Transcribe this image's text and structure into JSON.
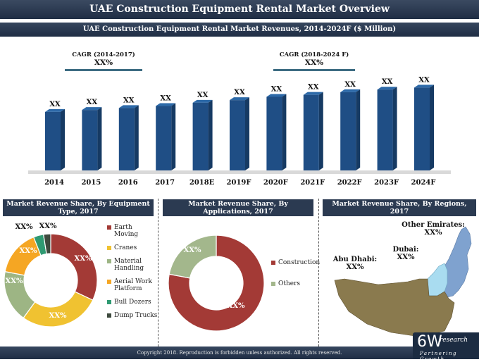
{
  "header": {
    "title": "UAE Construction Equipment Rental Market Overview",
    "subtitle": "UAE Construction Equipment Rental Market Revenues, 2014-2024F ($ Million)"
  },
  "cagr": [
    {
      "label": "CAGR (2014-2017)",
      "value": "XX%"
    },
    {
      "label": "CAGR (2018-2024 F)",
      "value": "XX%"
    }
  ],
  "chart_data": [
    {
      "type": "bar",
      "categories": [
        "2014",
        "2015",
        "2016",
        "2017",
        "2018E",
        "2019F",
        "2020F",
        "2021F",
        "2022F",
        "2023F",
        "2024F"
      ],
      "values": [
        89,
        92,
        95,
        98,
        103,
        107,
        112,
        115,
        119,
        123,
        126
      ],
      "data_labels": [
        "XX",
        "XX",
        "XX",
        "XX",
        "XX",
        "XX",
        "XX",
        "XX",
        "XX",
        "XX",
        "XX"
      ],
      "ylim": [
        0,
        135
      ],
      "color": "#1f4e85"
    },
    {
      "type": "pie",
      "title": "Market Revenue Share, By  Equipment Type, 2017",
      "categories": [
        "Earth Moving",
        "Cranes",
        "Material Handling",
        "Aerial Work Platform",
        "Bull Dozers",
        "Dump Trucks"
      ],
      "values": [
        32,
        28,
        18,
        16,
        3.5,
        2.5
      ],
      "data_labels": [
        "XX%",
        "XX%",
        "XX%",
        "XX%",
        "XX%",
        "XX%"
      ],
      "colors": [
        "#a33a36",
        "#f0c231",
        "#9db584",
        "#f5a623",
        "#2f9a72",
        "#3e4a3e"
      ],
      "legend": "right"
    },
    {
      "type": "pie",
      "title": "Market Revenue Share, By Applications, 2017",
      "categories": [
        "Construction",
        "Others"
      ],
      "values": [
        78,
        22
      ],
      "data_labels": [
        "XX%",
        "XX%"
      ],
      "colors": [
        "#a33a36",
        "#a3b78c"
      ],
      "legend": "right"
    }
  ],
  "regions": {
    "title": "Market Revenue Share, By Regions, 2017",
    "labels": [
      {
        "name": "Other Emirates:",
        "value": "XX%"
      },
      {
        "name": "Dubai:",
        "value": "XX%"
      },
      {
        "name": "Abu Dhabi:",
        "value": "XX%"
      }
    ],
    "colors": {
      "abu_dhabi": "#8a7a4e",
      "dubai": "#a9dcf0",
      "other": "#7fa2cf"
    }
  },
  "footer": {
    "copyright": "Copyright 2018. Reproduction is forbidden unless authorized. All rights reserved.",
    "logo_main": "6W",
    "logo_sub": "research",
    "logo_tag": "Partnering Growth"
  }
}
